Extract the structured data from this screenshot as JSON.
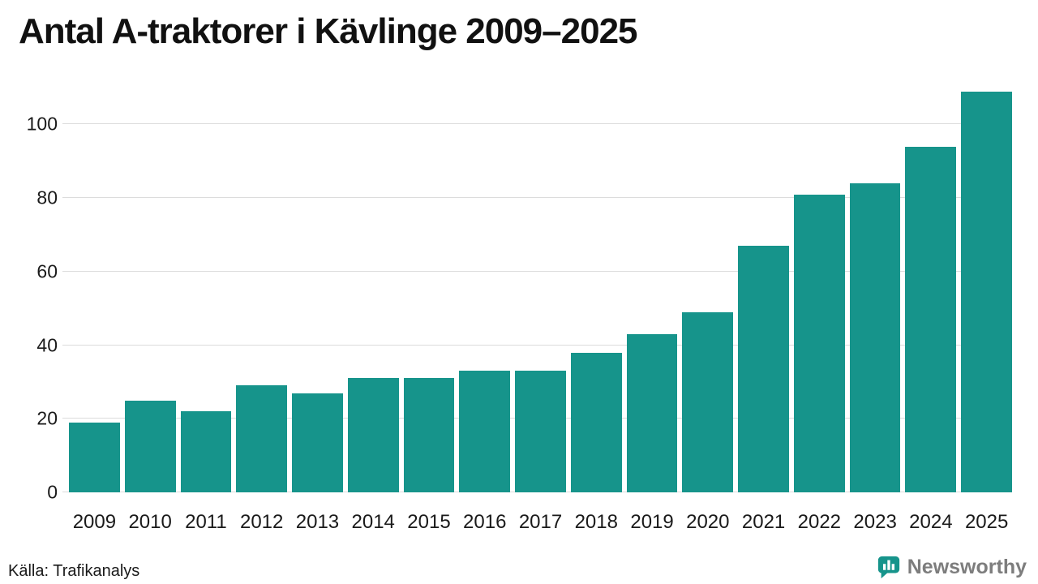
{
  "title": "Antal A-traktorer i Kävlinge 2009–2025",
  "source": "Källa: Trafikanalys",
  "brand": {
    "name": "Newsworthy"
  },
  "colors": {
    "bar": "#16948B",
    "grid": "#dcdcdc",
    "axis_text": "#1a1a1a",
    "title_text": "#111111",
    "brand_text": "#7d7d7d"
  },
  "chart_data": {
    "type": "bar",
    "title": "Antal A-traktorer i Kävlinge 2009–2025",
    "categories": [
      "2009",
      "2010",
      "2011",
      "2012",
      "2013",
      "2014",
      "2015",
      "2016",
      "2017",
      "2018",
      "2019",
      "2020",
      "2021",
      "2022",
      "2023",
      "2024",
      "2025"
    ],
    "values": [
      19,
      25,
      22,
      29,
      27,
      31,
      31,
      33,
      33,
      38,
      43,
      49,
      67,
      81,
      84,
      94,
      109
    ],
    "xlabel": "",
    "ylabel": "",
    "ylim": [
      0,
      110
    ],
    "yticks": [
      0,
      20,
      40,
      60,
      80,
      100
    ],
    "grid": "horizontal",
    "legend": "none",
    "bar_color": "#16948B",
    "source": "Källa: Trafikanalys"
  }
}
